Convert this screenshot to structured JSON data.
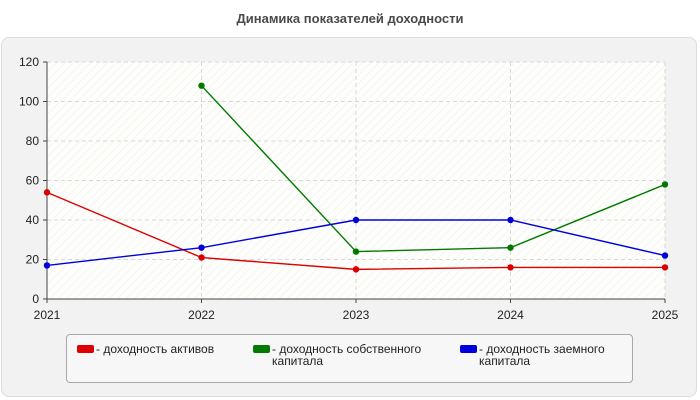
{
  "chart_data": {
    "type": "line",
    "title": "Динамика показателей доходности",
    "xlabel": "",
    "ylabel": "",
    "categories": [
      "2021",
      "2022",
      "2023",
      "2024",
      "2025"
    ],
    "ylim": [
      0,
      120
    ],
    "yticks": [
      0,
      20,
      40,
      60,
      80,
      100,
      120
    ],
    "grid": true,
    "legend_position": "bottom",
    "series": [
      {
        "name": "- доходность активов",
        "color": "#dd0000",
        "values": [
          54,
          21,
          15,
          16,
          16
        ]
      },
      {
        "name": "- доходность собственного капитала",
        "color": "#007a00",
        "values": [
          null,
          108,
          24,
          26,
          58
        ]
      },
      {
        "name": "- доходность заемного капитала",
        "color": "#0000dd",
        "values": [
          17,
          26,
          40,
          40,
          22
        ]
      }
    ]
  },
  "legend": {
    "items": [
      {
        "label": "- доходность активов",
        "color": "#dd0000"
      },
      {
        "label": "- доходность собственного\nкапитала",
        "color": "#007a00"
      },
      {
        "label": "- доходность заемного\nкапитала",
        "color": "#0000dd"
      }
    ]
  }
}
